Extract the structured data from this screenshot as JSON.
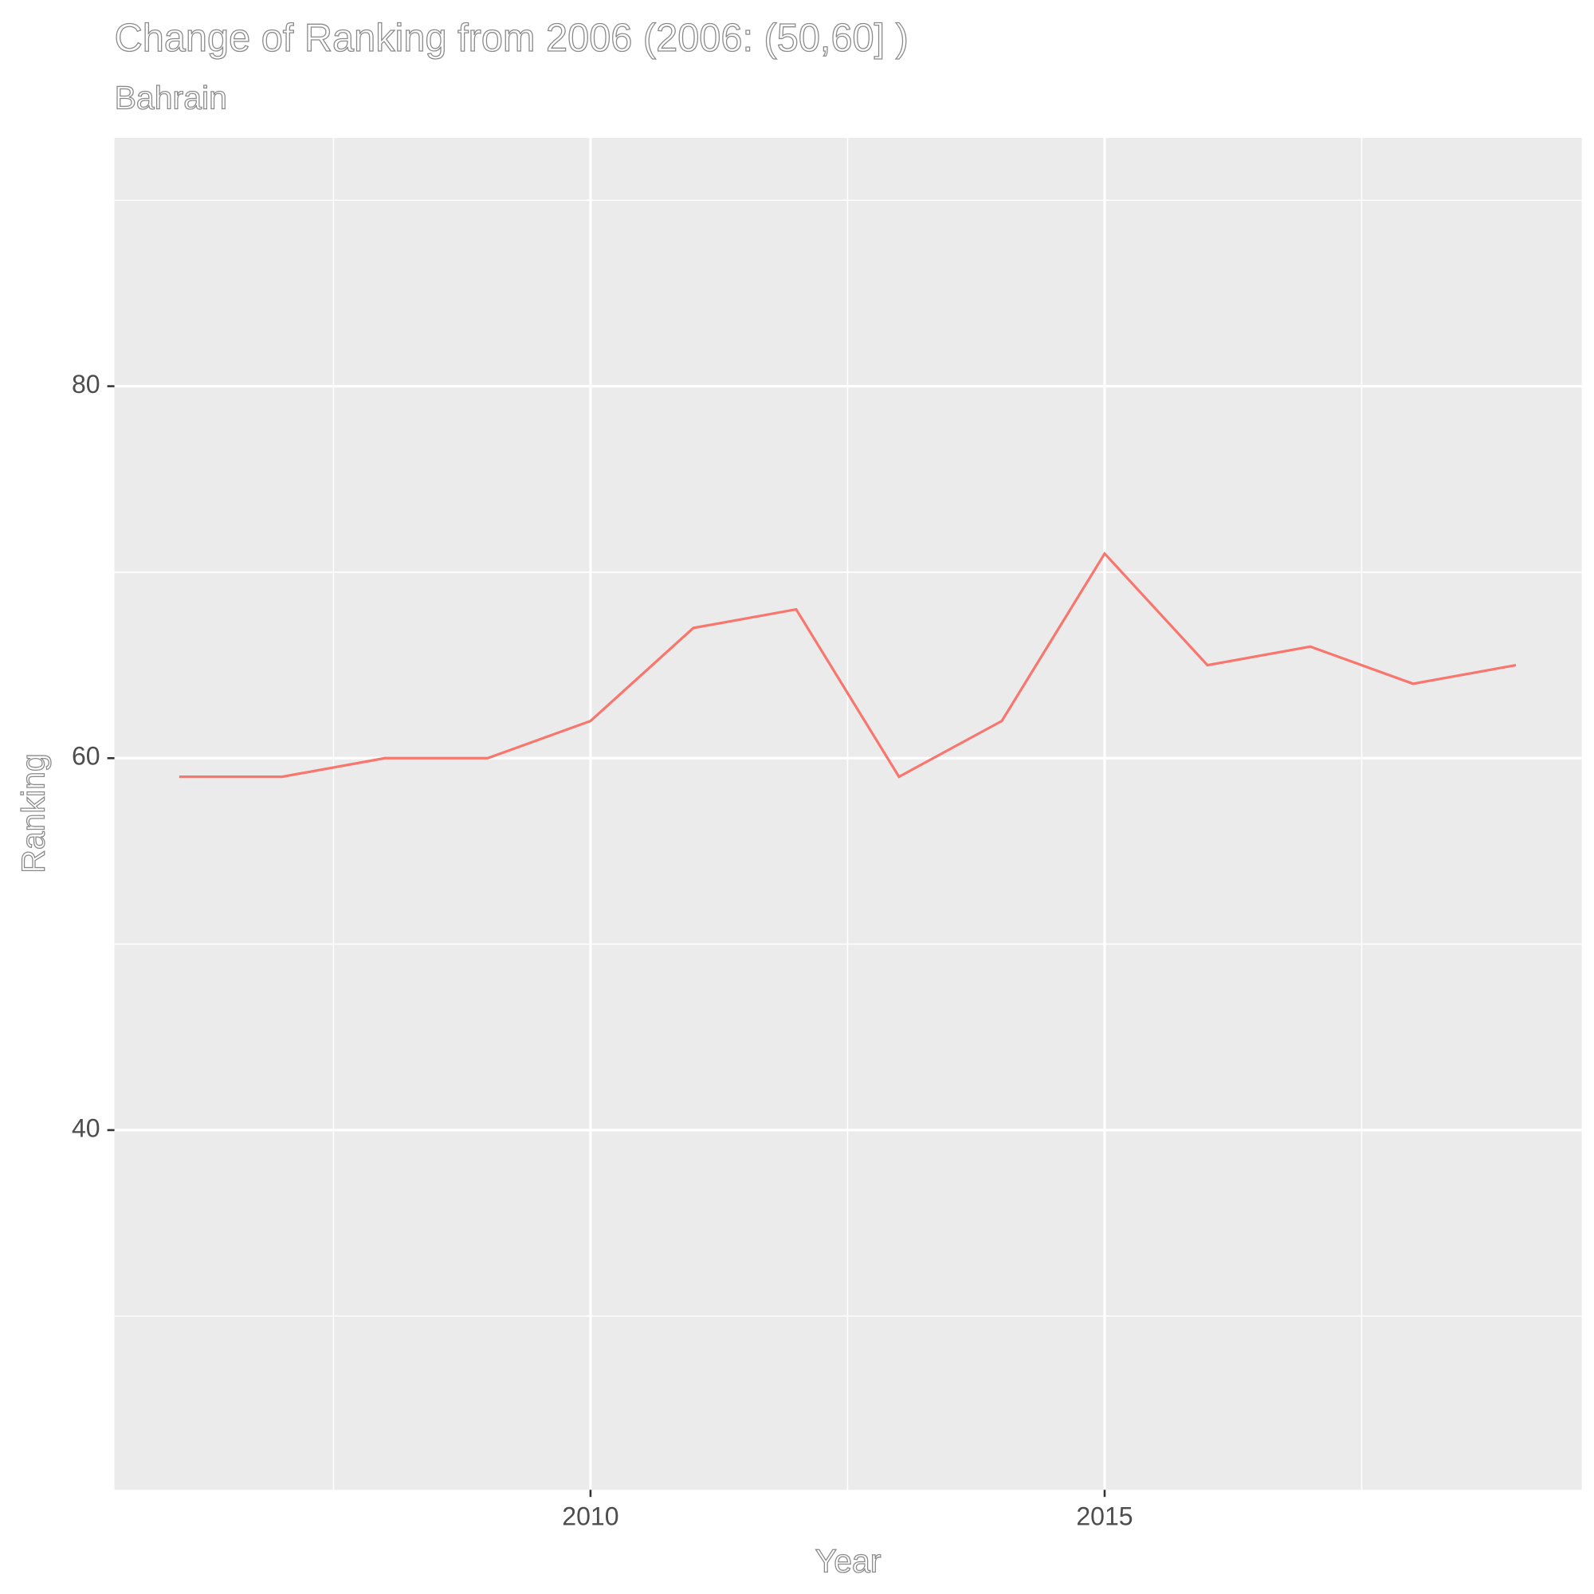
{
  "chart_data": {
    "type": "line",
    "title": "Change of Ranking from 2006 (2006: (50,60] )",
    "subtitle": "Bahrain",
    "x_label": "Year",
    "y_label": "Ranking",
    "x": [
      2006,
      2007,
      2008,
      2009,
      2010,
      2011,
      2012,
      2013,
      2014,
      2015,
      2016,
      2017,
      2018,
      2019
    ],
    "series": [
      {
        "name": "Bahrain",
        "color": "#F8766D",
        "values": [
          59,
          59,
          60,
          60,
          62,
          67,
          68,
          59,
          62,
          71,
          65,
          66,
          64,
          65
        ]
      }
    ],
    "xlim": [
      2005.37,
      2019.64
    ],
    "xticks": [
      2010,
      2015
    ],
    "minor_xticks": [
      2007.5,
      2012.5,
      2017.5
    ],
    "ylim": [
      20.66,
      93.35
    ],
    "yticks": [
      40,
      60,
      80
    ],
    "minor_yticks": [
      30,
      50,
      70,
      90
    ],
    "grid": true,
    "legend": false
  }
}
